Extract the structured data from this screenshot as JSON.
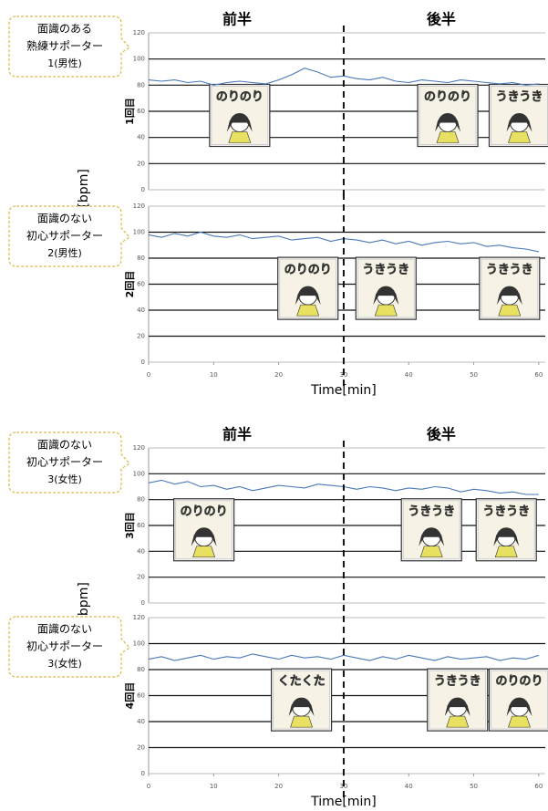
{
  "chart_data": [
    {
      "type": "line",
      "header": {
        "left": "前半",
        "right": "後半"
      },
      "y_label": "HR[bpm]",
      "row_label": "1回目",
      "callout": [
        "面識のある",
        "熟練サポーター",
        "1(男性)"
      ],
      "x": [
        0,
        2,
        4,
        6,
        8,
        10,
        12,
        14,
        16,
        18,
        20,
        22,
        24,
        26,
        28,
        30,
        32,
        34,
        36,
        38,
        40,
        42,
        44,
        46,
        48,
        50,
        52,
        54,
        56,
        58,
        60
      ],
      "series": [
        {
          "color": "#4a78b8",
          "values": [
            84,
            83,
            84,
            82,
            83,
            80,
            82,
            83,
            82,
            81,
            84,
            88,
            93,
            90,
            86,
            87,
            85,
            84,
            86,
            83,
            82,
            84,
            83,
            82,
            84,
            83,
            82,
            81,
            82,
            80,
            81
          ]
        }
      ],
      "xlim": [
        0,
        61
      ],
      "ylim": [
        0,
        120
      ],
      "yticks": [
        0,
        20,
        40,
        60,
        80,
        100,
        120
      ],
      "split": 30,
      "stickers": [
        {
          "label": "のりのり",
          "x": 14,
          "color": "#5aa02c"
        },
        {
          "label": "のりのり",
          "x": 46,
          "color": "#5aa02c"
        },
        {
          "label": "うきうき",
          "x": 57,
          "color": "#d8c21a"
        }
      ]
    },
    {
      "type": "line",
      "row_label": "2回目",
      "x_label": "Time[min]",
      "callout": [
        "面識のない",
        "初心サポーター",
        "2(男性)"
      ],
      "x": [
        0,
        2,
        4,
        6,
        8,
        10,
        12,
        14,
        16,
        18,
        20,
        22,
        24,
        26,
        28,
        30,
        32,
        34,
        36,
        38,
        40,
        42,
        44,
        46,
        48,
        50,
        52,
        54,
        56,
        58,
        60
      ],
      "series": [
        {
          "color": "#4a78b8",
          "values": [
            98,
            96,
            99,
            97,
            100,
            97,
            96,
            98,
            95,
            96,
            97,
            94,
            95,
            96,
            93,
            95,
            94,
            92,
            94,
            91,
            93,
            90,
            92,
            93,
            91,
            92,
            89,
            90,
            88,
            87,
            85
          ]
        }
      ],
      "xlim": [
        0,
        61
      ],
      "ylim": [
        0,
        120
      ],
      "yticks": [
        0,
        20,
        40,
        60,
        80,
        100,
        120
      ],
      "xticks": [
        0,
        10,
        20,
        30,
        40,
        50,
        60
      ],
      "split": 30,
      "stickers": [
        {
          "label": "のりのり",
          "x": 24.5,
          "color": "#5aa02c"
        },
        {
          "label": "うきうき",
          "x": 36.5,
          "color": "#d8c21a"
        },
        {
          "label": "うきうき",
          "x": 55.5,
          "color": "#d8c21a"
        }
      ]
    },
    {
      "type": "line",
      "header": {
        "left": "前半",
        "right": "後半"
      },
      "y_label": "HR[bpm]",
      "row_label": "3回目",
      "callout": [
        "面識のない",
        "初心サポーター",
        "3(女性)"
      ],
      "x": [
        0,
        2,
        4,
        6,
        8,
        10,
        12,
        14,
        16,
        18,
        20,
        22,
        24,
        26,
        28,
        30,
        32,
        34,
        36,
        38,
        40,
        42,
        44,
        46,
        48,
        50,
        52,
        54,
        56,
        58,
        60
      ],
      "series": [
        {
          "color": "#4a78b8",
          "values": [
            93,
            95,
            92,
            94,
            90,
            91,
            88,
            90,
            87,
            89,
            91,
            90,
            89,
            92,
            91,
            90,
            88,
            90,
            89,
            87,
            89,
            88,
            90,
            89,
            86,
            88,
            87,
            85,
            86,
            84,
            84
          ]
        }
      ],
      "xlim": [
        0,
        61
      ],
      "ylim": [
        0,
        120
      ],
      "yticks": [
        0,
        20,
        40,
        60,
        80,
        100,
        120
      ],
      "split": 30,
      "stickers": [
        {
          "label": "のりのり",
          "x": 8.5,
          "color": "#5aa02c"
        },
        {
          "label": "うきうき",
          "x": 43.5,
          "color": "#d8c21a"
        },
        {
          "label": "うきうき",
          "x": 55,
          "color": "#d8c21a"
        }
      ]
    },
    {
      "type": "line",
      "row_label": "4回目",
      "x_label": "Time[min]",
      "callout": [
        "面識のない",
        "初心サポーター",
        "3(女性)"
      ],
      "x": [
        0,
        2,
        4,
        6,
        8,
        10,
        12,
        14,
        16,
        18,
        20,
        22,
        24,
        26,
        28,
        30,
        32,
        34,
        36,
        38,
        40,
        42,
        44,
        46,
        48,
        50,
        52,
        54,
        56,
        58,
        60
      ],
      "series": [
        {
          "color": "#4a78b8",
          "values": [
            88,
            90,
            87,
            89,
            91,
            88,
            90,
            89,
            92,
            90,
            88,
            91,
            89,
            90,
            88,
            91,
            89,
            87,
            90,
            88,
            91,
            89,
            87,
            90,
            88,
            89,
            90,
            87,
            89,
            88,
            91
          ]
        }
      ],
      "xlim": [
        0,
        61
      ],
      "ylim": [
        0,
        120
      ],
      "yticks": [
        0,
        20,
        40,
        60,
        80,
        100,
        120
      ],
      "xticks": [
        0,
        10,
        20,
        30,
        40,
        50,
        60
      ],
      "split": 30,
      "stickers": [
        {
          "label": "くたくた",
          "x": 23.5,
          "color": "#2b3d8f"
        },
        {
          "label": "うきうき",
          "x": 47.5,
          "color": "#d8c21a"
        },
        {
          "label": "のりのり",
          "x": 57,
          "color": "#5aa02c"
        }
      ]
    }
  ]
}
